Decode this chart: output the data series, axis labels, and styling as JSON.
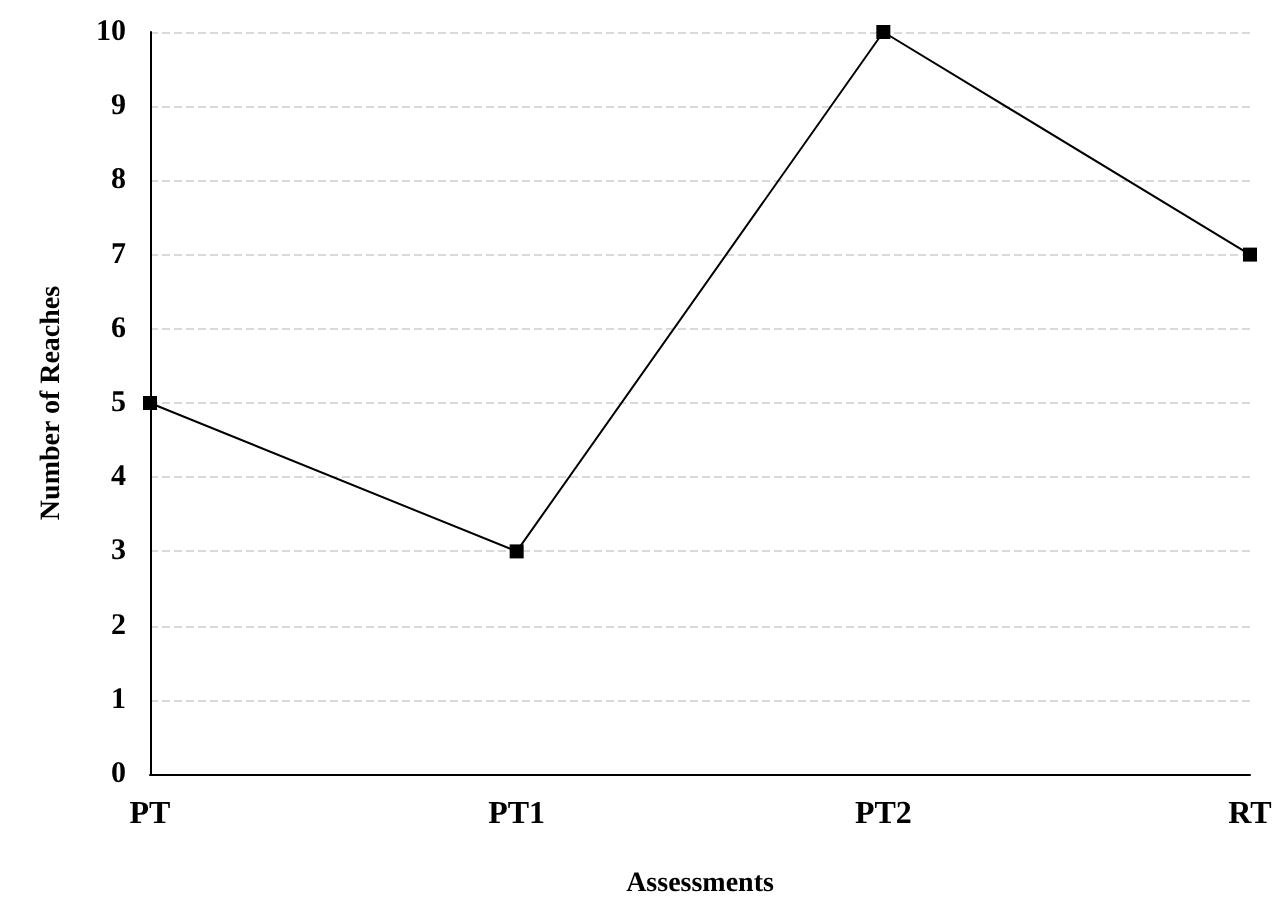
{
  "chart_data": {
    "type": "line",
    "xlabel": "Assessments",
    "ylabel": "Number of Reaches",
    "categories": [
      "PT",
      "PT1",
      "PT2",
      "RT"
    ],
    "series": [
      {
        "color": "#000000",
        "values": [
          5,
          3,
          10,
          7
        ]
      }
    ],
    "ylim": [
      0,
      10
    ],
    "yticks": [
      0,
      1,
      2,
      3,
      4,
      5,
      6,
      7,
      8,
      9,
      10
    ],
    "grid": "y",
    "marker": "square",
    "line_style": "solid"
  }
}
